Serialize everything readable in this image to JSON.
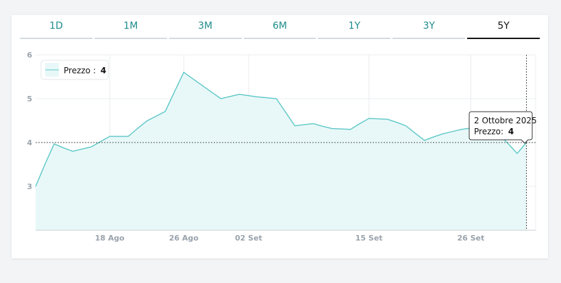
{
  "tabs": [
    {
      "label": "1D",
      "active": false
    },
    {
      "label": "1M",
      "active": false
    },
    {
      "label": "3M",
      "active": false
    },
    {
      "label": "6M",
      "active": false
    },
    {
      "label": "1Y",
      "active": false
    },
    {
      "label": "3Y",
      "active": false
    },
    {
      "label": "5Y",
      "active": true
    }
  ],
  "colors": {
    "line": "#5cc6c6",
    "fill": "#e8f8f8",
    "tab_text": "#1f8c8c",
    "active_tab": "#111111"
  },
  "legend": {
    "label": "Prezzo :",
    "value": "4"
  },
  "tooltip": {
    "date": "2 Ottobre 2025",
    "label": "Prezzo:",
    "value": "4"
  },
  "chart_data": {
    "type": "area",
    "series": [
      {
        "name": "Prezzo",
        "x": [
          "2025-08-10",
          "2025-08-11",
          "2025-08-12",
          "2025-08-13",
          "2025-08-14",
          "2025-08-15",
          "2025-08-16",
          "2025-08-17",
          "2025-08-18",
          "2025-08-19",
          "2025-08-20",
          "2025-08-21",
          "2025-08-22",
          "2025-08-23",
          "2025-08-24",
          "2025-08-25",
          "2025-08-26",
          "2025-08-27",
          "2025-08-28",
          "2025-08-29",
          "2025-08-30",
          "2025-08-31",
          "2025-09-01",
          "2025-09-02",
          "2025-09-03",
          "2025-09-04",
          "2025-09-05",
          "2025-09-06",
          "2025-09-07",
          "2025-09-08",
          "2025-09-09",
          "2025-09-10",
          "2025-09-11",
          "2025-09-12",
          "2025-09-13",
          "2025-09-14",
          "2025-09-15",
          "2025-09-16",
          "2025-09-17",
          "2025-09-18",
          "2025-09-19",
          "2025-09-20",
          "2025-09-21",
          "2025-09-22",
          "2025-09-23",
          "2025-09-24",
          "2025-09-25",
          "2025-09-26",
          "2025-09-27",
          "2025-09-28",
          "2025-09-29",
          "2025-09-30",
          "2025-10-01",
          "2025-10-02"
        ],
        "values": [
          3.0,
          3.5,
          3.97,
          3.88,
          3.8,
          3.85,
          3.9,
          4.02,
          4.14,
          4.14,
          4.14,
          4.32,
          4.49,
          4.6,
          4.71,
          5.16,
          5.6,
          5.45,
          5.3,
          5.15,
          5.0,
          5.05,
          5.1,
          5.07,
          5.04,
          5.02,
          5.0,
          4.69,
          4.38,
          4.41,
          4.43,
          4.37,
          4.32,
          4.31,
          4.3,
          4.43,
          4.55,
          4.54,
          4.53,
          4.46,
          4.38,
          4.21,
          4.05,
          4.13,
          4.2,
          4.25,
          4.3,
          4.33,
          4.35,
          4.25,
          4.2,
          3.98,
          3.75,
          4.0
        ]
      }
    ],
    "ylim": [
      2,
      6
    ],
    "y_ticks": [
      3,
      4,
      5,
      6
    ],
    "x_ticks": [
      {
        "x": "2025-08-18",
        "label": "18 Ago"
      },
      {
        "x": "2025-08-26",
        "label": "26 Ago"
      },
      {
        "x": "2025-09-02",
        "label": "02 Set"
      },
      {
        "x": "2025-09-15",
        "label": "15 Set"
      },
      {
        "x": "2025-09-26",
        "label": "26 Set"
      }
    ],
    "xlim": [
      "2025-08-10",
      "2025-10-03"
    ],
    "crosshair": {
      "x": "2025-10-02",
      "y": 4
    },
    "grid": true,
    "legend_position": "top-left"
  }
}
